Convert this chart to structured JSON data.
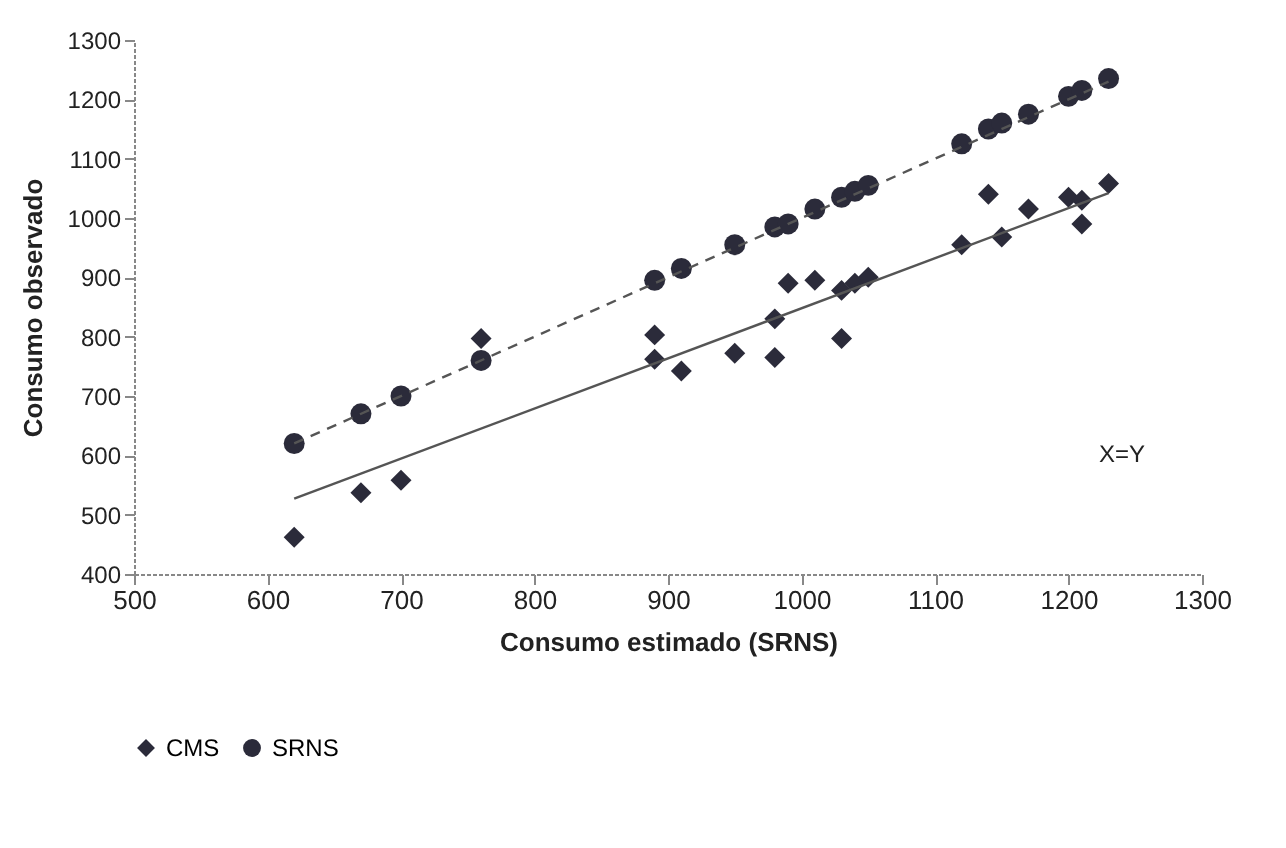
{
  "chart_data": {
    "type": "scatter",
    "xlabel": "Consumo estimado (SRNS)",
    "ylabel": "Consumo  observado",
    "xlim": [
      500,
      1300
    ],
    "xticks": [
      500,
      600,
      700,
      800,
      900,
      1000,
      1100,
      1200,
      1300
    ],
    "ylim": [
      400,
      1300
    ],
    "yticks": [
      400,
      500,
      600,
      700,
      800,
      900,
      1000,
      1100,
      1200,
      1300
    ],
    "grid": false,
    "legend": "bottom",
    "annotations": [
      "X=Y"
    ],
    "series": [
      {
        "name": "CMS",
        "color": "#2b2b3a",
        "marker": "diamond",
        "x": [
          620,
          670,
          700,
          760,
          890,
          890,
          910,
          950,
          980,
          980,
          990,
          1010,
          1030,
          1030,
          1040,
          1050,
          1120,
          1140,
          1150,
          1170,
          1200,
          1210,
          1210,
          1230
        ],
        "values": [
          462,
          537,
          558,
          797,
          803,
          762,
          742,
          772,
          765,
          830,
          890,
          895,
          797,
          878,
          890,
          900,
          955,
          1040,
          968,
          1015,
          1035,
          990,
          1030,
          1058
        ]
      },
      {
        "name": "SRNS",
        "color": "#2b2b3a",
        "marker": "circle",
        "x": [
          620,
          670,
          700,
          760,
          890,
          910,
          950,
          980,
          990,
          1010,
          1030,
          1040,
          1050,
          1120,
          1140,
          1150,
          1170,
          1200,
          1210,
          1230
        ],
        "values": [
          620,
          670,
          700,
          760,
          895,
          915,
          955,
          985,
          990,
          1015,
          1035,
          1045,
          1055,
          1125,
          1150,
          1160,
          1175,
          1205,
          1215,
          1235
        ]
      },
      {
        "type": "line",
        "color": "#555555",
        "line_style": "solid",
        "x": [
          620,
          1230
        ],
        "values": [
          527,
          1042
        ]
      },
      {
        "type": "line",
        "color": "#555555",
        "line_style": "dashed",
        "x": [
          620,
          1230
        ],
        "values": [
          620,
          1230
        ]
      }
    ]
  }
}
